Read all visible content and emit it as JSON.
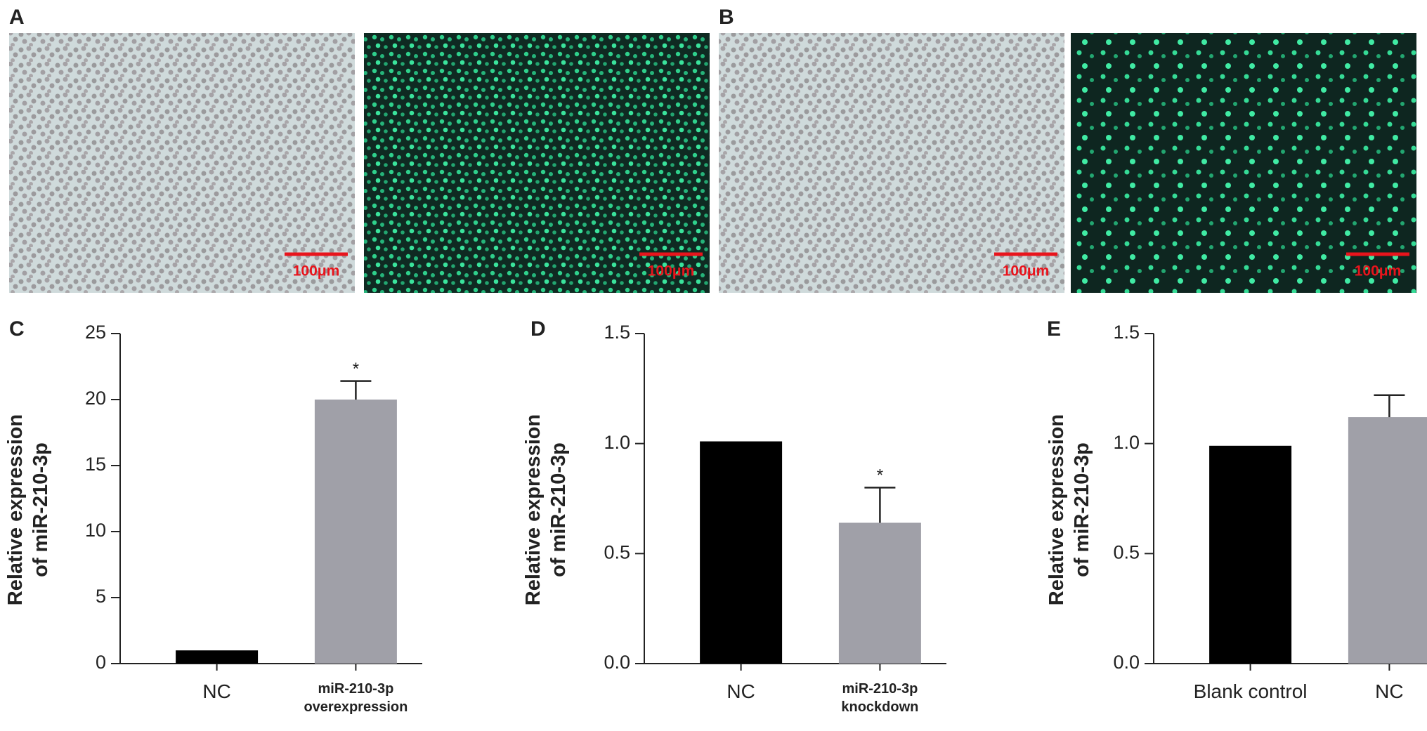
{
  "image_panels": [
    {
      "label": "A",
      "images": [
        {
          "scale_bar": "100μm"
        },
        {
          "scale_bar": "100μm"
        }
      ]
    },
    {
      "label": "B",
      "images": [
        {
          "scale_bar": "100μm"
        },
        {
          "scale_bar": "100μm"
        }
      ]
    }
  ],
  "chart_data": [
    {
      "type": "bar",
      "label": "C",
      "ylabel": "Relative expression\nof miR-210-3p",
      "categories": [
        "NC",
        "miR-210-3p\noverexpression"
      ],
      "values": [
        1,
        20
      ],
      "errors": [
        null,
        1.4
      ],
      "colors": [
        "#000000",
        "#a0a0a8"
      ],
      "significance": [
        null,
        "*"
      ],
      "ylim": [
        0,
        25
      ],
      "yticks": [
        0,
        5,
        10,
        15,
        20,
        25
      ]
    },
    {
      "type": "bar",
      "label": "D",
      "ylabel": "Relative expression\nof miR-210-3p",
      "categories": [
        "NC",
        "miR-210-3p\nknockdown"
      ],
      "values": [
        1.01,
        0.64
      ],
      "errors": [
        null,
        0.16
      ],
      "colors": [
        "#000000",
        "#a0a0a8"
      ],
      "significance": [
        null,
        "*"
      ],
      "ylim": [
        0,
        1.5
      ],
      "yticks": [
        {
          "value": 0,
          "label": "0.0"
        },
        0.5,
        {
          "value": 1,
          "label": "1.0"
        },
        1.5
      ]
    },
    {
      "type": "bar",
      "label": "E",
      "ylabel": "Relative expression\nof miR-210-3p",
      "categories": [
        "Blank control",
        "NC"
      ],
      "values": [
        0.99,
        1.12
      ],
      "errors": [
        null,
        0.1
      ],
      "colors": [
        "#000000",
        "#a0a0a8"
      ],
      "significance": [
        null,
        null
      ],
      "ylim": [
        0,
        1.5
      ],
      "yticks": [
        {
          "value": 0,
          "label": "0.0"
        },
        0.5,
        {
          "value": 1,
          "label": "1.0"
        },
        1.5
      ]
    }
  ]
}
